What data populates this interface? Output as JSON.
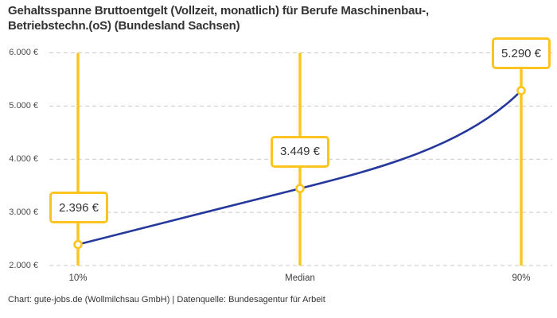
{
  "title": {
    "line1": "Gehaltsspanne Bruttoentgelt (Vollzeit, monatlich) für Berufe Maschinenbau-,",
    "line2": "Betriebstechn.(oS) (Bundesland Sachsen)"
  },
  "footer": "Chart: gute-jobs.de (Wollmilchsau GmbH) | Datenquelle: Bundesagentur für Arbeit",
  "colors": {
    "accent_yellow": "#fcc41f",
    "line_blue": "#25389b",
    "grid_gray": "#c9c9c9",
    "text_dark": "#333333"
  },
  "chart_data": {
    "type": "line",
    "title": "Gehaltsspanne Bruttoentgelt (Vollzeit, monatlich) für Berufe Maschinenbau-, Betriebstechn.(oS) (Bundesland Sachsen)",
    "categories": [
      "10%",
      "Median",
      "90%"
    ],
    "values": [
      2396,
      3449,
      5290
    ],
    "value_labels": [
      "2.396 €",
      "3.449 €",
      "5.290 €"
    ],
    "y_ticks": [
      "2.000 €",
      "3.000 €",
      "4.000 €",
      "5.000 €",
      "6.000 €"
    ],
    "ylim": [
      2000,
      6000
    ],
    "xlabel": "",
    "ylabel": "",
    "grid": "horizontal-dashed",
    "legend": "none"
  }
}
